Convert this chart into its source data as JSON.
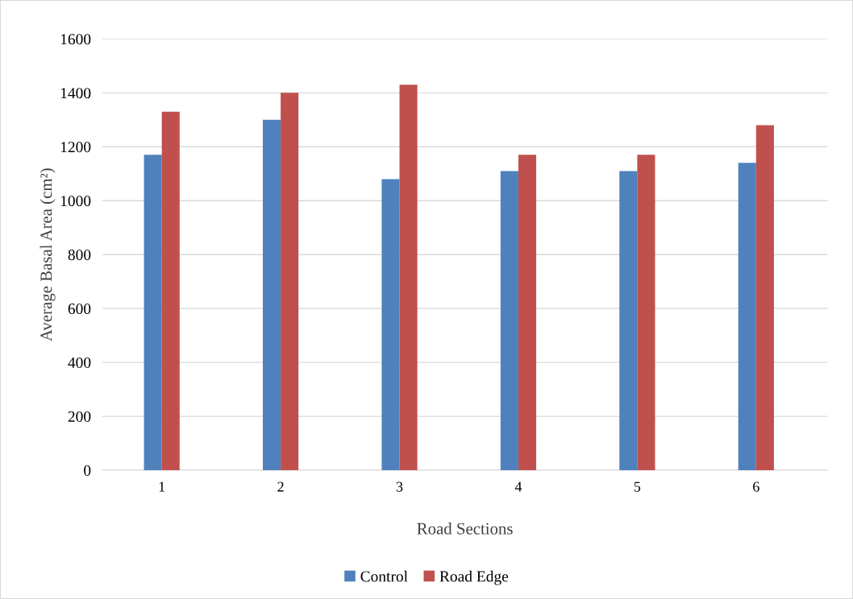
{
  "chart_data": {
    "type": "bar",
    "xlabel": "Road Sections",
    "ylabel": "Average Basal Area (cm²)",
    "categories": [
      "1",
      "2",
      "3",
      "4",
      "5",
      "6"
    ],
    "series": [
      {
        "name": "Control",
        "color": "#4f81bd",
        "values": [
          1170,
          1300,
          1080,
          1110,
          1110,
          1140
        ]
      },
      {
        "name": "Road Edge",
        "color": "#c0504d",
        "values": [
          1330,
          1400,
          1430,
          1170,
          1170,
          1280
        ]
      }
    ],
    "ylim": [
      0,
      1600
    ],
    "yticks": [
      0,
      200,
      400,
      600,
      800,
      1000,
      1200,
      1400,
      1600
    ],
    "grid": "y",
    "legend": "bottom"
  }
}
